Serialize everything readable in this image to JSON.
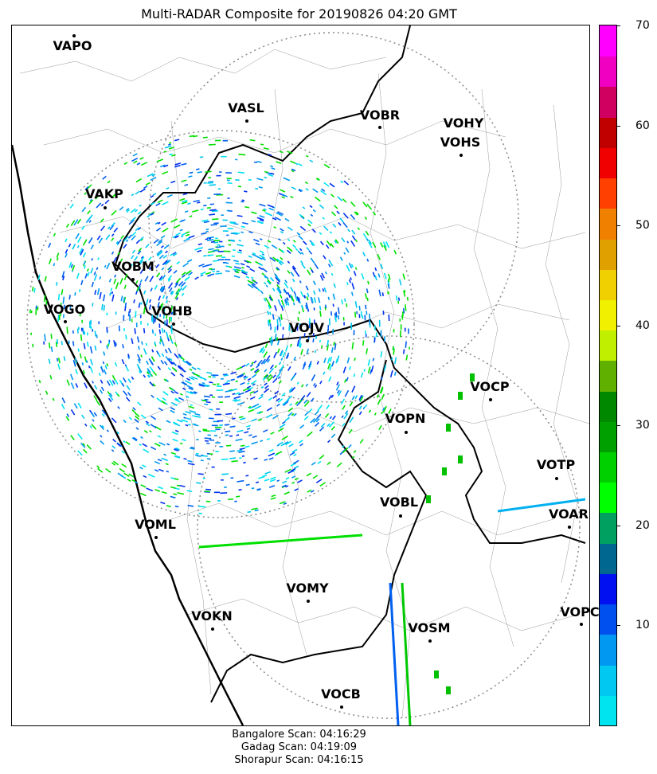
{
  "title": "Multi-RADAR Composite for 20190826 04:20 GMT",
  "stations": [
    {
      "code": "VAPO"
    },
    {
      "code": "VASL"
    },
    {
      "code": "VOBR"
    },
    {
      "code": "VOHY"
    },
    {
      "code": "VOHS"
    },
    {
      "code": "VAKP"
    },
    {
      "code": "VOBM"
    },
    {
      "code": "VOGO"
    },
    {
      "code": "VOHB"
    },
    {
      "code": "VOJV"
    },
    {
      "code": "VOCP"
    },
    {
      "code": "VOPN"
    },
    {
      "code": "VOTP"
    },
    {
      "code": "VOBL"
    },
    {
      "code": "VOAR"
    },
    {
      "code": "VOML"
    },
    {
      "code": "VOMY"
    },
    {
      "code": "VOKN"
    },
    {
      "code": "VOSM"
    },
    {
      "code": "VOPC"
    },
    {
      "code": "VOCB"
    }
  ],
  "colorbar": {
    "min": 0,
    "max": 70,
    "ticks": [
      "10",
      "20",
      "30",
      "40",
      "50",
      "60",
      "70"
    ],
    "colors": [
      "#00e4f0",
      "#00c8f0",
      "#0098f0",
      "#0050f0",
      "#0010f0",
      "#006890",
      "#00a060",
      "#00ff00",
      "#00d000",
      "#00a000",
      "#008800",
      "#60b000",
      "#c0f000",
      "#f0f000",
      "#f0d000",
      "#e0a000",
      "#f08000",
      "#ff4000",
      "#f00000",
      "#c00000",
      "#d00060",
      "#f000c0",
      "#ff00ff"
    ]
  },
  "scan_times": [
    "Bangalore Scan: 04:16:29",
    "Gadag Scan: 04:19:09",
    "Shorapur Scan: 04:16:15"
  ]
}
